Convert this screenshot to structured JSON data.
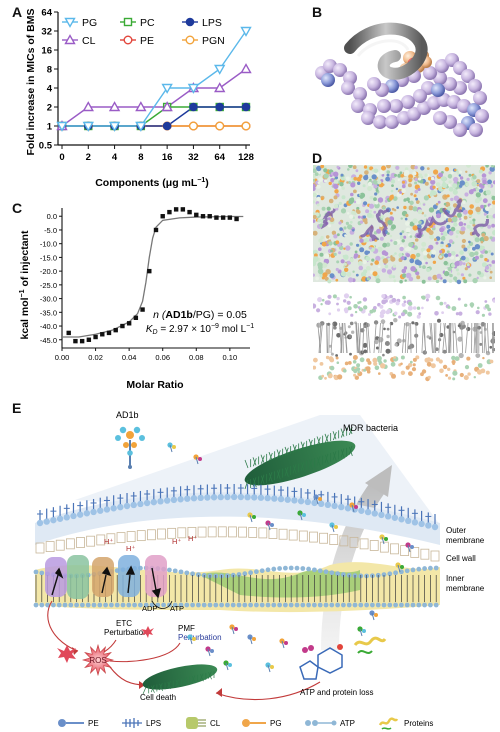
{
  "panels": {
    "A": "A",
    "B": "B",
    "C": "C",
    "D": "D",
    "E": "E"
  },
  "chart_data": [
    {
      "type": "line",
      "panel": "A",
      "ylabel": "Fold increase in MICs of BMS",
      "xlabel": "Components (μg mL⁻¹)",
      "xlabel_main": "Components (",
      "xlabel_unit": "μg mL",
      "xlabel_sup": "−1",
      "xlabel_close": ")",
      "categories": [
        "0",
        "2",
        "4",
        "8",
        "16",
        "32",
        "64",
        "128"
      ],
      "yticks": [
        "64",
        "32",
        "16",
        "8",
        "4",
        "2",
        "1",
        "0.5"
      ],
      "yscale": "log2",
      "ylim": [
        0.5,
        64
      ],
      "series": [
        {
          "name": "PG",
          "color": "#5bb8ea",
          "marker": "triangle-down",
          "values": [
            1,
            1,
            1,
            1,
            4,
            4,
            8,
            32
          ]
        },
        {
          "name": "CL",
          "color": "#9a5cc6",
          "marker": "triangle-up",
          "values": [
            1,
            2,
            2,
            2,
            2,
            4,
            4,
            8
          ]
        },
        {
          "name": "PC",
          "color": "#3aaa35",
          "marker": "square",
          "values": [
            1,
            1,
            1,
            1,
            2,
            2,
            2,
            2
          ]
        },
        {
          "name": "PE",
          "color": "#e2443a",
          "marker": "circle-open",
          "values": [
            1,
            1,
            1,
            1,
            1,
            1,
            1,
            1
          ]
        },
        {
          "name": "LPS",
          "color": "#1e3a9c",
          "marker": "circle-filled",
          "values": [
            1,
            1,
            1,
            1,
            1,
            2,
            2,
            2
          ]
        },
        {
          "name": "PGN",
          "color": "#f2a33a",
          "marker": "circle-open",
          "values": [
            1,
            1,
            1,
            1,
            1,
            1,
            1,
            1
          ]
        }
      ],
      "legend": "top-left"
    },
    {
      "type": "scatter",
      "panel": "C",
      "xlabel": "Molar Ratio",
      "ylabel_main": "kcal mol",
      "ylabel_sup": "−1",
      "ylabel_tail": " of injectant",
      "xticks": [
        "0.00",
        "0.02",
        "0.04",
        "0.06",
        "0.08",
        "0.10"
      ],
      "yticks": [
        "0.0",
        "-5.0",
        "-10.0",
        "-15.0",
        "-20.0",
        "-25.0",
        "-30.0",
        "-35.0",
        "-40.0",
        "-45.0"
      ],
      "xlim": [
        0,
        0.112
      ],
      "ylim": [
        -48,
        3
      ],
      "x": [
        0.004,
        0.008,
        0.012,
        0.016,
        0.02,
        0.024,
        0.028,
        0.032,
        0.036,
        0.04,
        0.044,
        0.048,
        0.052,
        0.056,
        0.06,
        0.064,
        0.068,
        0.072,
        0.076,
        0.08,
        0.084,
        0.088,
        0.092,
        0.096,
        0.1,
        0.104
      ],
      "y": [
        -42.5,
        -45.5,
        -45.5,
        -45.0,
        -44.0,
        -43.0,
        -42.5,
        -41.5,
        -40.0,
        -39.0,
        -37.0,
        -34.0,
        -20.0,
        -5.0,
        0.0,
        1.5,
        2.5,
        2.5,
        1.5,
        0.5,
        0.0,
        0.0,
        -0.5,
        -0.5,
        -0.5,
        -1.0
      ],
      "fit_x": [
        0.0,
        0.01,
        0.02,
        0.03,
        0.04,
        0.045,
        0.048,
        0.05,
        0.052,
        0.054,
        0.056,
        0.06,
        0.07,
        0.08,
        0.09,
        0.1,
        0.108
      ],
      "fit_y": [
        -44.0,
        -44.0,
        -43.0,
        -41.5,
        -38.5,
        -35.5,
        -31.0,
        -24.0,
        -15.0,
        -8.0,
        -4.0,
        -1.5,
        -0.6,
        -0.3,
        -0.2,
        -0.1,
        -0.1
      ],
      "annotation_line1_pre": "n (",
      "annotation_line1_bold": "AD1b",
      "annotation_line1_post": "/PG) = 0.05",
      "annotation_line2": "K",
      "annotation_line2_sub": "D",
      "annotation_line2_post": " = 2.97 × 10",
      "annotation_line2_exp": "−9",
      "annotation_line2_unit": " mol L",
      "annotation_line2_unit_exp": "−1"
    }
  ],
  "panelE": {
    "labels": {
      "ad1b": "AD1b",
      "mdr": "MDR bacteria",
      "outer_membrane": "Outer\nmembrane",
      "outer_membrane_l1": "Outer",
      "outer_membrane_l2": "membrane",
      "cell_wall": "Cell wall",
      "inner_membrane_l1": "Inner",
      "inner_membrane_l2": "membrane",
      "adp": "ADP",
      "atp": "ATP",
      "pmf": "PMF",
      "pmf_perturb": "Perturbation",
      "etc": "ETC",
      "etc_perturb": "Perturbation",
      "ros": "ROS",
      "cell_death": "Cell death",
      "atp_loss": "ATP and protein loss",
      "h1": "H⁺",
      "h2": "H⁺",
      "h3": "H⁺",
      "h4": "H⁺"
    },
    "legend": [
      {
        "label": "PE",
        "icon": "pe-lipid-icon",
        "color": "#6a8fc9"
      },
      {
        "label": "LPS",
        "icon": "lps-icon",
        "color": "#4a74b8"
      },
      {
        "label": "CL",
        "icon": "cl-lipid-icon",
        "color": "#b7c96a"
      },
      {
        "label": "PG",
        "icon": "pg-lipid-icon",
        "color": "#f0a64a"
      },
      {
        "label": "ATP",
        "icon": "atp-icon",
        "color": "#8fb7d6"
      },
      {
        "label": "Proteins",
        "icon": "protein-icon",
        "color": "#e8c94a"
      }
    ]
  }
}
